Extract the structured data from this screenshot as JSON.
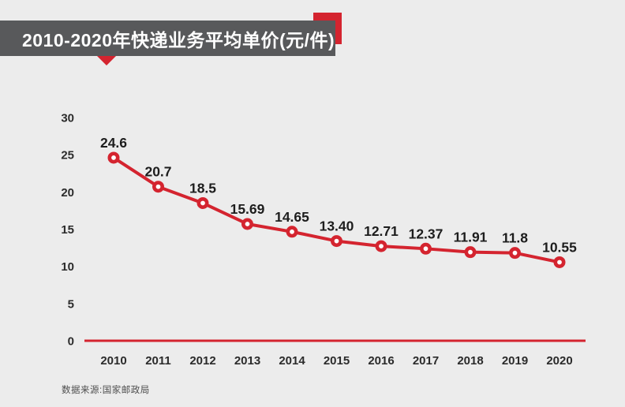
{
  "title": {
    "text": "2010-2020年快递业务平均单价(元/件)"
  },
  "source": {
    "text": "数据来源:国家邮政局"
  },
  "colors": {
    "background": "#ececec",
    "banner_gray": "#58595b",
    "accent_red": "#d4242f",
    "title_text": "#ffffff",
    "tick_text": "#2b2b2b",
    "data_label_text": "#1d1d1d",
    "source_text": "#4d4d4d"
  },
  "chart_data": {
    "type": "line",
    "title": "2010-2020年快递业务平均单价(元/件)",
    "xlabel": "",
    "ylabel": "",
    "categories": [
      "2010",
      "2011",
      "2012",
      "2013",
      "2014",
      "2015",
      "2016",
      "2017",
      "2018",
      "2019",
      "2020"
    ],
    "series": [
      {
        "name": "快递业务平均单价(元/件)",
        "values": [
          24.6,
          20.7,
          18.5,
          15.69,
          14.65,
          13.4,
          12.71,
          12.37,
          11.91,
          11.8,
          10.55
        ],
        "labels": [
          "24.6",
          "20.7",
          "18.5",
          "15.69",
          "14.65",
          "13.40",
          "12.71",
          "12.37",
          "11.91",
          "11.8",
          "10.55"
        ]
      }
    ],
    "ylim": [
      0,
      30
    ],
    "yticks": [
      0,
      5,
      10,
      15,
      20,
      25,
      30
    ],
    "grid": false,
    "legend_position": "none",
    "marker": "open-circle",
    "baseline_axis": "x-axis shown as red line at y=0",
    "source": "数据来源:国家邮政局"
  }
}
